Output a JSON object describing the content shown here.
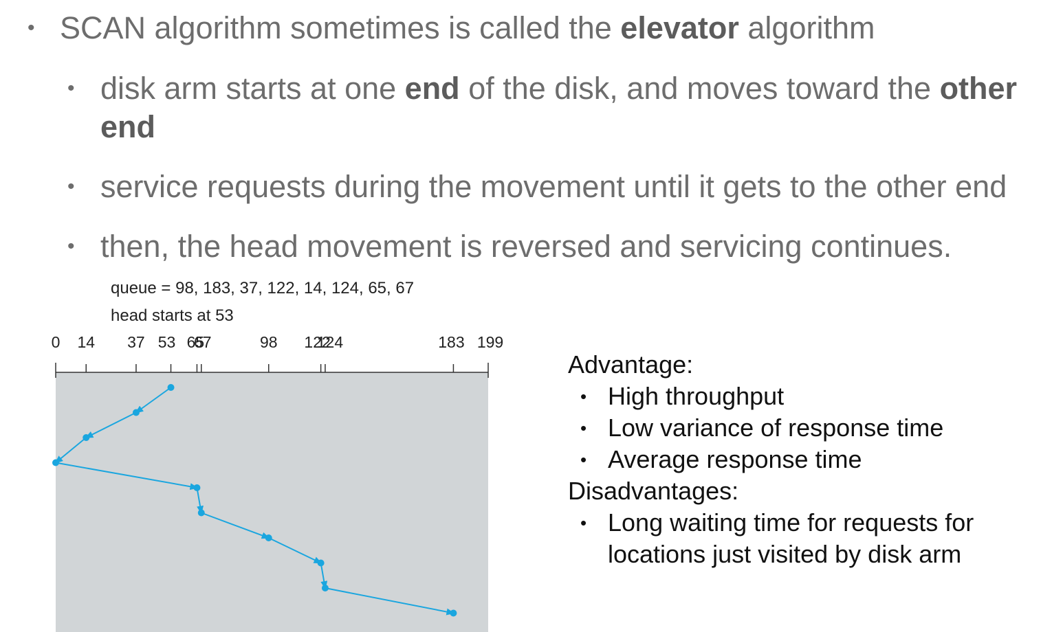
{
  "bullets": {
    "main": {
      "pre": "SCAN algorithm sometimes is called the ",
      "bold": "elevator",
      "post": " algorithm"
    },
    "sub1": {
      "pre": "disk arm starts at one ",
      "bold1": "end",
      "mid": " of the disk, and moves toward the ",
      "bold2": "other",
      "bold3": "end"
    },
    "sub2": "service requests during the movement until it gets to the other end",
    "sub3": "then, the head movement is reversed and servicing continues."
  },
  "figure": {
    "queue_label": "queue = 98, 183, 37, 122, 14, 124, 65, 67",
    "head_label": "head starts at 53",
    "ticks": [
      "0",
      "14",
      "37",
      "53",
      "65",
      "67",
      "98",
      "122",
      "124",
      "183",
      "199"
    ],
    "cylinder_max": 199,
    "path": [
      53,
      37,
      14,
      0,
      65,
      67,
      98,
      122,
      124,
      183
    ],
    "colors": {
      "panel": "#d1d5d7",
      "path": "#1aa6df"
    }
  },
  "side": {
    "adv_title": "Advantage:",
    "adv_items": [
      "High throughput",
      "Low variance of response time",
      "Average response time"
    ],
    "dis_title": "Disadvantages:",
    "dis_line1": "Long waiting time for requests for",
    "dis_line2": "locations just visited by disk arm"
  }
}
